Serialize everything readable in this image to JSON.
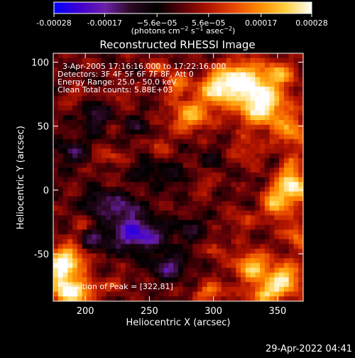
{
  "chart_data": {
    "type": "heatmap",
    "title": "Reconstructed RHESSI Image",
    "xlabel": "Heliocentric X (arcsec)",
    "ylabel": "Heliocentric Y (arcsec)",
    "xlim": [
      175,
      370
    ],
    "ylim": [
      -87,
      107
    ],
    "x_ticks": [
      200,
      250,
      300,
      350
    ],
    "x_tick_labels": [
      "200",
      "250",
      "300",
      "350"
    ],
    "y_ticks": [
      -50,
      0,
      50,
      100
    ],
    "y_tick_labels": [
      "-50",
      "0",
      "50",
      "100"
    ],
    "colorbar": {
      "range": [
        -0.00028,
        0.00028
      ],
      "tick_values": [
        -0.00028,
        -0.00017,
        -5.6e-05,
        5.6e-05,
        0.00017,
        0.00028
      ],
      "tick_labels": [
        "-0.00028",
        "-0.00017",
        "−5.6e−05",
        "5.6e−05",
        "0.00017",
        "0.00028"
      ],
      "units_prefix": "(photons cm",
      "units_sup1": "−2",
      "units_mid": " s",
      "units_sup2": "−1",
      "units_mid2": " asec",
      "units_sup3": "−2",
      "units_suffix": ")"
    },
    "annotations": [
      "3-Apr-2005 17:16:16.000 to 17:22:16.000",
      "Detectors: 3F 4F 5F 6F 7F 8F, Att 0",
      "Energy Range: 25.0 - 50.0 keV",
      "Clean     Total counts: 5.88E+03"
    ],
    "peak_label": "Position of Peak = [322,81]",
    "peak_position": [
      322,
      81
    ],
    "footer_date": "29-Apr-2022 04:41",
    "grid": false,
    "colormap": [
      "#0000ff",
      "#4000d0",
      "#6c20a8",
      "#2a0820",
      "#000000",
      "#5a0008",
      "#b01400",
      "#e84800",
      "#ff8c00",
      "#ffd040",
      "#ffffff"
    ]
  }
}
